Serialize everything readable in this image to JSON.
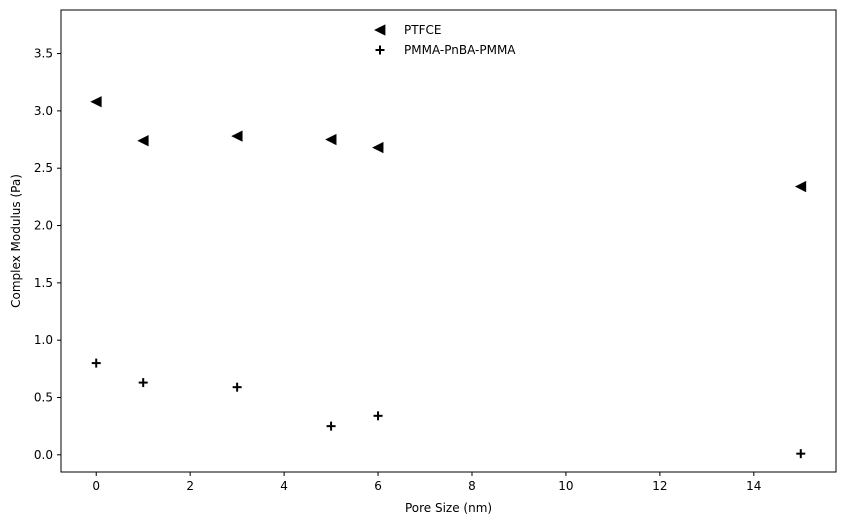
{
  "chart_data": {
    "type": "scatter",
    "title": "",
    "xlabel": "Pore Size (nm)",
    "ylabel": "Complex Modulus (Pa)",
    "xlim": [
      -0.75,
      15.75
    ],
    "ylim": [
      -0.15,
      3.88
    ],
    "xticks": [
      0,
      2,
      4,
      6,
      8,
      10,
      12,
      14
    ],
    "yticks": [
      0.0,
      0.5,
      1.0,
      1.5,
      2.0,
      2.5,
      3.0,
      3.5
    ],
    "xtick_labels": [
      "0",
      "2",
      "4",
      "6",
      "8",
      "10",
      "12",
      "14"
    ],
    "ytick_labels": [
      "0.0",
      "0.5",
      "1.0",
      "1.5",
      "2.0",
      "2.5",
      "3.0",
      "3.5"
    ],
    "grid": false,
    "legend_position": "top-center",
    "series": [
      {
        "name": "PTFCE",
        "marker": "triangle-left",
        "color": "#000000",
        "x": [
          0,
          1,
          3,
          5,
          6,
          15
        ],
        "y": [
          3.08,
          2.74,
          2.78,
          2.75,
          2.68,
          2.34
        ]
      },
      {
        "name": "PMMA-PnBA-PMMA",
        "marker": "plus",
        "color": "#000000",
        "x": [
          0,
          1,
          3,
          5,
          6,
          15
        ],
        "y": [
          0.8,
          0.63,
          0.59,
          0.25,
          0.34,
          0.01
        ]
      }
    ]
  }
}
